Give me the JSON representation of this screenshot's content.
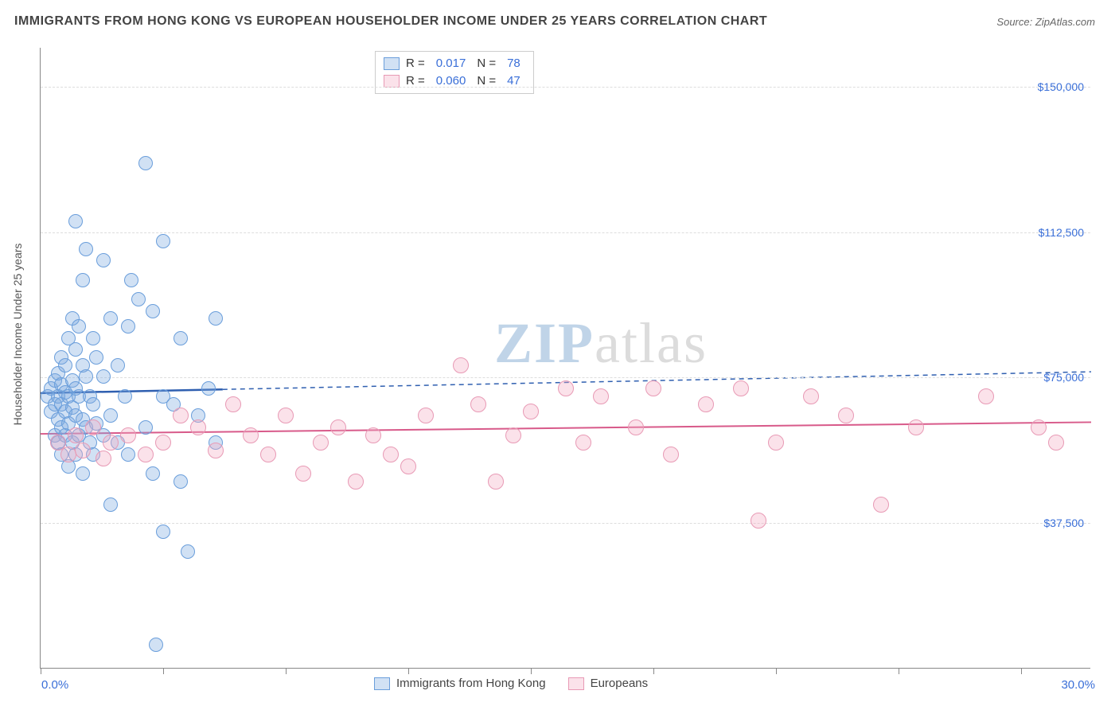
{
  "title": "IMMIGRANTS FROM HONG KONG VS EUROPEAN HOUSEHOLDER INCOME UNDER 25 YEARS CORRELATION CHART",
  "source_label": "Source:",
  "source_value": "ZipAtlas.com",
  "watermark_a": "ZIP",
  "watermark_b": "atlas",
  "y_axis_label": "Householder Income Under 25 years",
  "chart": {
    "type": "scatter",
    "background_color": "#ffffff",
    "grid_color": "#dddddd",
    "axis_color": "#888888",
    "tick_label_color": "#3a6fd8",
    "x_min": 0.0,
    "x_max": 30.0,
    "x_start_label": "0.0%",
    "x_end_label": "30.0%",
    "x_tick_positions": [
      0,
      3.5,
      7,
      10.5,
      14,
      17.5,
      21,
      24.5,
      28
    ],
    "y_min": 0,
    "y_max": 160000,
    "y_ticks": [
      {
        "value": 37500,
        "label": "$37,500"
      },
      {
        "value": 75000,
        "label": "$75,000"
      },
      {
        "value": 112500,
        "label": "$112,500"
      },
      {
        "value": 150000,
        "label": "$150,000"
      }
    ],
    "series": [
      {
        "id": "hk",
        "name": "Immigrants from Hong Kong",
        "marker_color_fill": "rgba(122,169,224,0.35)",
        "marker_color_stroke": "#6a9edb",
        "marker_radius": 9,
        "trend_color": "#2f5fb0",
        "trend_width": 2.5,
        "trend_solid_xmax": 5.2,
        "trend_y_at_xmin": 71000,
        "trend_y_at_xmax": 76500,
        "R": "0.017",
        "N": "78",
        "points": [
          [
            0.2,
            70000
          ],
          [
            0.3,
            66000
          ],
          [
            0.3,
            72000
          ],
          [
            0.4,
            60000
          ],
          [
            0.4,
            68000
          ],
          [
            0.4,
            74000
          ],
          [
            0.5,
            58000
          ],
          [
            0.5,
            64000
          ],
          [
            0.5,
            70000
          ],
          [
            0.5,
            76000
          ],
          [
            0.6,
            55000
          ],
          [
            0.6,
            62000
          ],
          [
            0.6,
            68000
          ],
          [
            0.6,
            73000
          ],
          [
            0.6,
            80000
          ],
          [
            0.7,
            60000
          ],
          [
            0.7,
            66000
          ],
          [
            0.7,
            71000
          ],
          [
            0.7,
            78000
          ],
          [
            0.8,
            52000
          ],
          [
            0.8,
            63000
          ],
          [
            0.8,
            70000
          ],
          [
            0.8,
            85000
          ],
          [
            0.9,
            58000
          ],
          [
            0.9,
            67000
          ],
          [
            0.9,
            74000
          ],
          [
            0.9,
            90000
          ],
          [
            1.0,
            55000
          ],
          [
            1.0,
            65000
          ],
          [
            1.0,
            72000
          ],
          [
            1.0,
            82000
          ],
          [
            1.0,
            115000
          ],
          [
            1.1,
            60000
          ],
          [
            1.1,
            70000
          ],
          [
            1.1,
            88000
          ],
          [
            1.2,
            50000
          ],
          [
            1.2,
            64000
          ],
          [
            1.2,
            78000
          ],
          [
            1.2,
            100000
          ],
          [
            1.3,
            62000
          ],
          [
            1.3,
            75000
          ],
          [
            1.3,
            108000
          ],
          [
            1.4,
            58000
          ],
          [
            1.4,
            70000
          ],
          [
            1.5,
            55000
          ],
          [
            1.5,
            68000
          ],
          [
            1.5,
            85000
          ],
          [
            1.6,
            63000
          ],
          [
            1.6,
            80000
          ],
          [
            1.8,
            60000
          ],
          [
            1.8,
            75000
          ],
          [
            1.8,
            105000
          ],
          [
            2.0,
            42000
          ],
          [
            2.0,
            65000
          ],
          [
            2.0,
            90000
          ],
          [
            2.2,
            58000
          ],
          [
            2.2,
            78000
          ],
          [
            2.4,
            70000
          ],
          [
            2.5,
            55000
          ],
          [
            2.5,
            88000
          ],
          [
            2.8,
            95000
          ],
          [
            3.0,
            62000
          ],
          [
            3.0,
            130000
          ],
          [
            3.2,
            50000
          ],
          [
            3.2,
            92000
          ],
          [
            3.5,
            35000
          ],
          [
            3.5,
            70000
          ],
          [
            3.5,
            110000
          ],
          [
            3.8,
            68000
          ],
          [
            4.0,
            48000
          ],
          [
            4.0,
            85000
          ],
          [
            4.2,
            30000
          ],
          [
            4.5,
            65000
          ],
          [
            4.8,
            72000
          ],
          [
            5.0,
            90000
          ],
          [
            5.0,
            58000
          ],
          [
            3.3,
            6000
          ],
          [
            2.6,
            100000
          ]
        ]
      },
      {
        "id": "eu",
        "name": "Europeans",
        "marker_color_fill": "rgba(243,172,195,0.35)",
        "marker_color_stroke": "#e89ab5",
        "marker_radius": 10,
        "trend_color": "#d85a8a",
        "trend_width": 2,
        "trend_solid_xmax": 30,
        "trend_y_at_xmin": 60500,
        "trend_y_at_xmax": 63500,
        "R": "0.060",
        "N": "47",
        "points": [
          [
            0.5,
            58000
          ],
          [
            0.8,
            55000
          ],
          [
            1.0,
            60000
          ],
          [
            1.2,
            56000
          ],
          [
            1.5,
            62000
          ],
          [
            1.8,
            54000
          ],
          [
            2.0,
            58000
          ],
          [
            2.5,
            60000
          ],
          [
            3.0,
            55000
          ],
          [
            3.5,
            58000
          ],
          [
            4.0,
            65000
          ],
          [
            4.5,
            62000
          ],
          [
            5.0,
            56000
          ],
          [
            5.5,
            68000
          ],
          [
            6.0,
            60000
          ],
          [
            6.5,
            55000
          ],
          [
            7.0,
            65000
          ],
          [
            7.5,
            50000
          ],
          [
            8.0,
            58000
          ],
          [
            8.5,
            62000
          ],
          [
            9.0,
            48000
          ],
          [
            9.5,
            60000
          ],
          [
            10.0,
            55000
          ],
          [
            10.5,
            52000
          ],
          [
            11.0,
            65000
          ],
          [
            12.0,
            78000
          ],
          [
            12.5,
            68000
          ],
          [
            13.0,
            48000
          ],
          [
            13.5,
            60000
          ],
          [
            14.0,
            66000
          ],
          [
            15.0,
            72000
          ],
          [
            15.5,
            58000
          ],
          [
            16.0,
            70000
          ],
          [
            17.0,
            62000
          ],
          [
            17.5,
            72000
          ],
          [
            18.0,
            55000
          ],
          [
            19.0,
            68000
          ],
          [
            20.0,
            72000
          ],
          [
            20.5,
            38000
          ],
          [
            21.0,
            58000
          ],
          [
            22.0,
            70000
          ],
          [
            23.0,
            65000
          ],
          [
            24.0,
            42000
          ],
          [
            25.0,
            62000
          ],
          [
            27.0,
            70000
          ],
          [
            28.5,
            62000
          ],
          [
            29.0,
            58000
          ]
        ]
      }
    ]
  },
  "legend_top": {
    "rows": [
      {
        "series": "hk",
        "R_label": "R",
        "N_label": "N"
      },
      {
        "series": "eu",
        "R_label": "R",
        "N_label": "N"
      }
    ]
  }
}
